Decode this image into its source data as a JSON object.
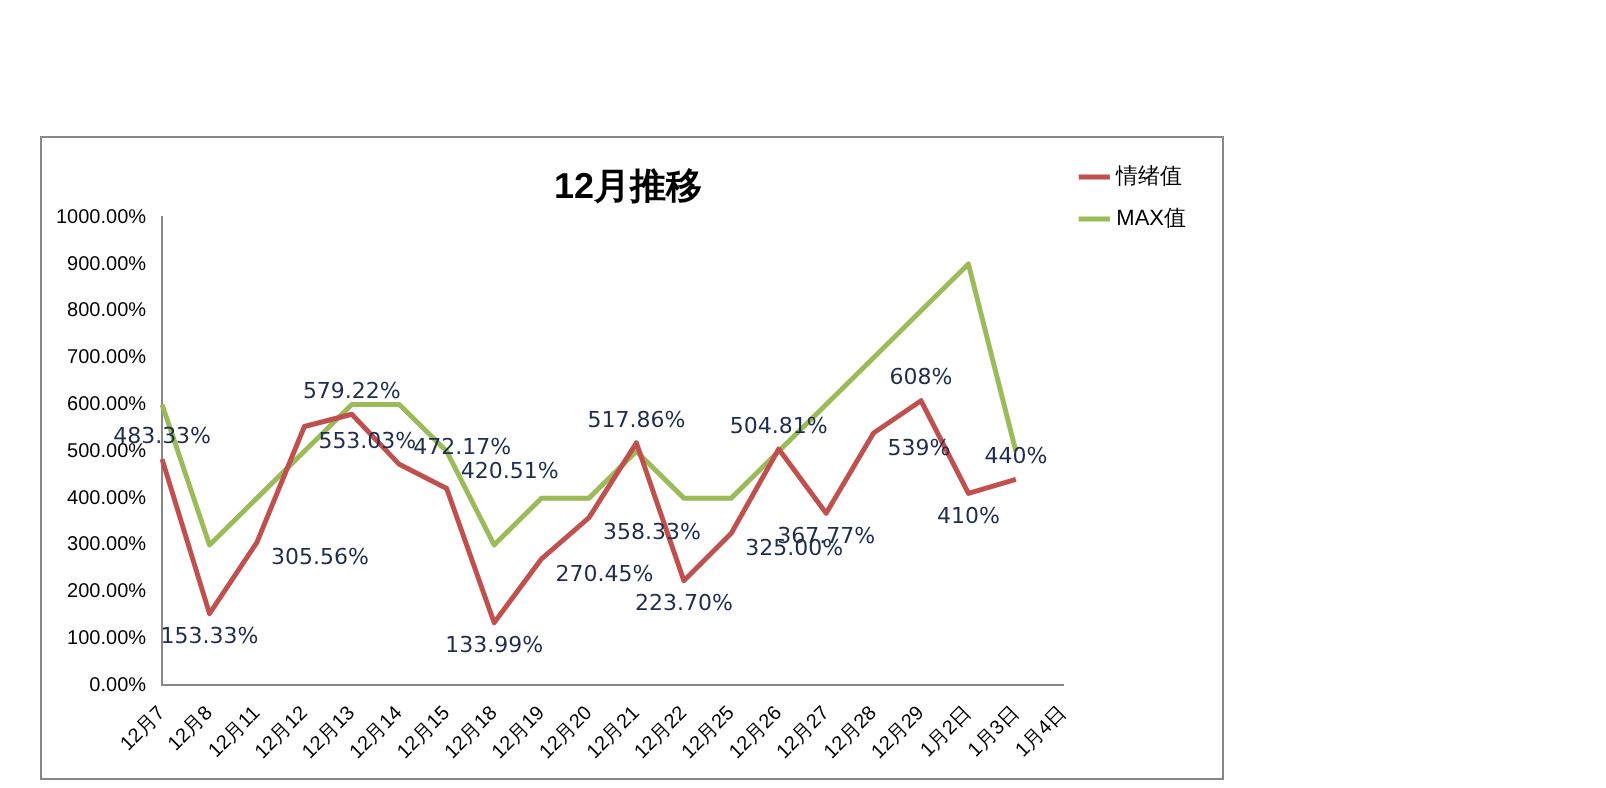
{
  "chart_data": {
    "type": "line",
    "title": "12月推移",
    "categories": [
      "12月7",
      "12月8",
      "12月11",
      "12月12",
      "12月13",
      "12月14",
      "12月15",
      "12月18",
      "12月19",
      "12月20",
      "12月21",
      "12月22",
      "12月25",
      "12月26",
      "12月27",
      "12月28",
      "12月29",
      "1月2日",
      "1月3日",
      "1月4日"
    ],
    "series": [
      {
        "name": "情绪值",
        "color": "#c0504d",
        "values": [
          483.33,
          153.33,
          305.56,
          553.03,
          579.22,
          472.17,
          420.51,
          133.99,
          270.45,
          358.33,
          517.86,
          223.7,
          325.0,
          504.81,
          367.77,
          539,
          608,
          410,
          440,
          null
        ],
        "value_labels": [
          "483.33%",
          "153.33%",
          "305.56%",
          "553.03%",
          "579.22%",
          "472.17%",
          "420.51%",
          "133.99%",
          "270.45%",
          "358.33%",
          "517.86%",
          "223.70%",
          "325.00%",
          "504.81%",
          "367.77%",
          "539%",
          "608%",
          "410%",
          "440%",
          null
        ]
      },
      {
        "name": "MAX值",
        "color": "#9bbb59",
        "values": [
          600,
          300,
          400,
          500,
          600,
          600,
          500,
          300,
          400,
          400,
          500,
          400,
          400,
          500,
          600,
          700,
          800,
          900,
          500,
          null
        ]
      }
    ],
    "ylim": [
      0,
      1000
    ],
    "yticks": [
      {
        "value": 0,
        "label": "0.00%"
      },
      {
        "value": 100,
        "label": "100.00%"
      },
      {
        "value": 200,
        "label": "200.00%"
      },
      {
        "value": 300,
        "label": "300.00%"
      },
      {
        "value": 400,
        "label": "400.00%"
      },
      {
        "value": 500,
        "label": "500.00%"
      },
      {
        "value": 600,
        "label": "600.00%"
      },
      {
        "value": 700,
        "label": "700.00%"
      },
      {
        "value": 800,
        "label": "800.00%"
      },
      {
        "value": 900,
        "label": "900.00%"
      },
      {
        "value": 1000,
        "label": "1000.00%"
      }
    ],
    "grid": false,
    "legend": "top right",
    "marker": "none",
    "line_style": "solid"
  }
}
